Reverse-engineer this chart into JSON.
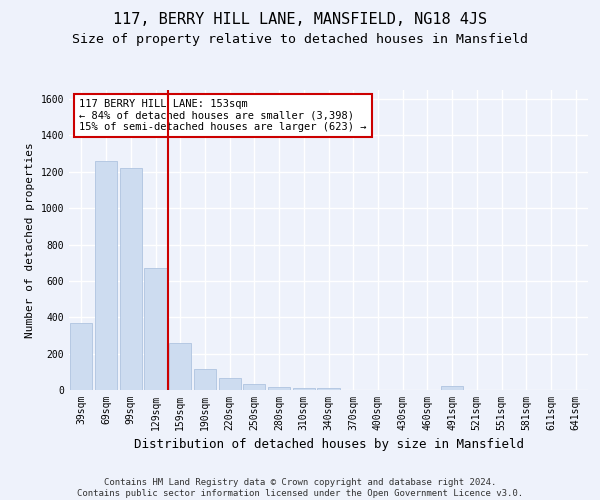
{
  "title_line1": "117, BERRY HILL LANE, MANSFIELD, NG18 4JS",
  "title_line2": "Size of property relative to detached houses in Mansfield",
  "xlabel": "Distribution of detached houses by size in Mansfield",
  "ylabel": "Number of detached properties",
  "categories": [
    "39sqm",
    "69sqm",
    "99sqm",
    "129sqm",
    "159sqm",
    "190sqm",
    "220sqm",
    "250sqm",
    "280sqm",
    "310sqm",
    "340sqm",
    "370sqm",
    "400sqm",
    "430sqm",
    "460sqm",
    "491sqm",
    "521sqm",
    "551sqm",
    "581sqm",
    "611sqm",
    "641sqm"
  ],
  "values": [
    370,
    1260,
    1220,
    670,
    260,
    115,
    65,
    33,
    18,
    10,
    10,
    0,
    0,
    0,
    0,
    20,
    0,
    0,
    0,
    0,
    0
  ],
  "bar_color": "#cddcf0",
  "bar_edge_color": "#afc4e0",
  "vline_color": "#cc0000",
  "annotation_text": "117 BERRY HILL LANE: 153sqm\n← 84% of detached houses are smaller (3,398)\n15% of semi-detached houses are larger (623) →",
  "annotation_box_color": "white",
  "annotation_box_edge_color": "#cc0000",
  "ylim": [
    0,
    1650
  ],
  "yticks": [
    0,
    200,
    400,
    600,
    800,
    1000,
    1200,
    1400,
    1600
  ],
  "footer_text": "Contains HM Land Registry data © Crown copyright and database right 2024.\nContains public sector information licensed under the Open Government Licence v3.0.",
  "bg_color": "#eef2fb",
  "plot_bg_color": "#eef2fb",
  "grid_color": "white",
  "title1_fontsize": 11,
  "title2_fontsize": 9.5,
  "xlabel_fontsize": 9,
  "ylabel_fontsize": 8,
  "tick_fontsize": 7,
  "annotation_fontsize": 7.5,
  "footer_fontsize": 6.5
}
